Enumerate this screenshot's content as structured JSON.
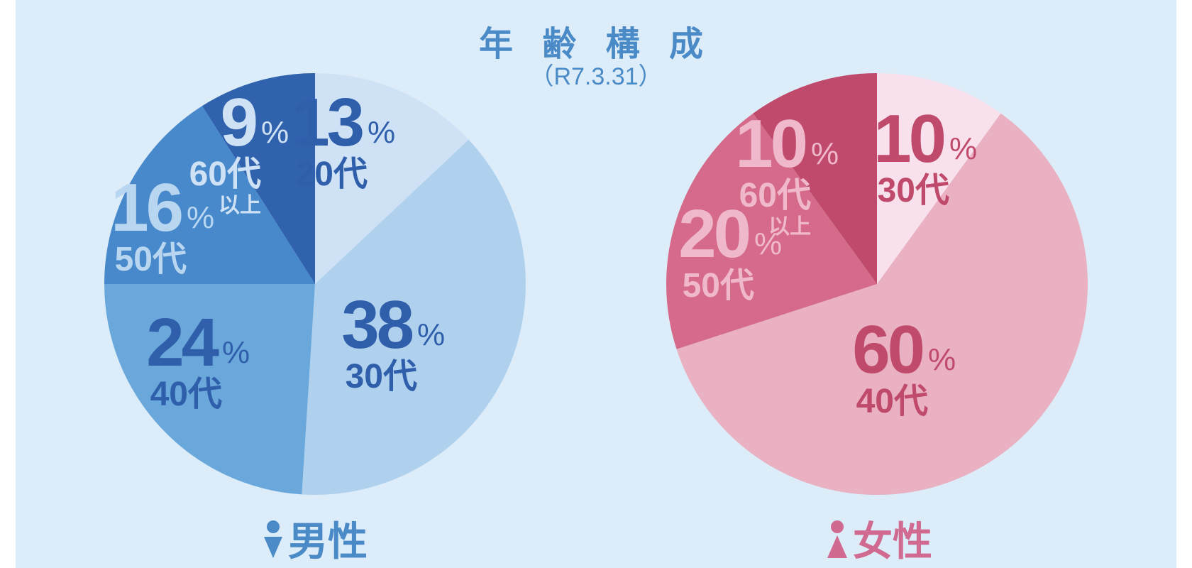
{
  "title": "年 齢 構 成",
  "subtitle": "（R7.3.31）",
  "percent_symbol": "%",
  "male": {
    "label": "男性",
    "icon": "male-icon",
    "color": "#4a8ac6"
  },
  "female": {
    "label": "女性",
    "icon": "female-icon",
    "color": "#d06a90"
  },
  "chart_data": [
    {
      "type": "pie",
      "name": "男性",
      "slices": [
        {
          "pct": "13",
          "age": "20代",
          "value": 13,
          "color": "#cfe2f5",
          "text_color": "#2f5fab"
        },
        {
          "pct": "38",
          "age": "30代",
          "value": 38,
          "color": "#b0d1ee",
          "text_color": "#2f5fab"
        },
        {
          "pct": "24",
          "age": "40代",
          "value": 24,
          "color": "#6aa8dc",
          "text_color": "#2f5fab"
        },
        {
          "pct": "16",
          "age": "50代",
          "value": 16,
          "color": "#4789cb",
          "text_color": "#b9d6f1"
        },
        {
          "pct": "9",
          "age": "60代",
          "age2": "以上",
          "value": 9,
          "color": "#3162ad",
          "text_color": "#cfe2f5"
        }
      ]
    },
    {
      "type": "pie",
      "name": "女性",
      "slices": [
        {
          "pct": "10",
          "age": "30代",
          "value": 10,
          "color": "#f8e1ec",
          "text_color": "#c04a6c"
        },
        {
          "pct": "60",
          "age": "40代",
          "value": 60,
          "color": "#e9b1c1",
          "text_color": "#c04a6c"
        },
        {
          "pct": "20",
          "age": "50代",
          "value": 20,
          "color": "#d56a8a",
          "text_color": "#f0b9cb"
        },
        {
          "pct": "10",
          "age": "60代",
          "age2": "以上",
          "value": 10,
          "color": "#c04a6c",
          "text_color": "#f0b9cb"
        }
      ]
    }
  ]
}
